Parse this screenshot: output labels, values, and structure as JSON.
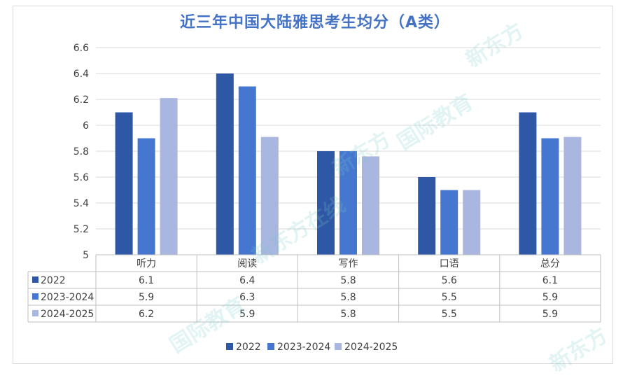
{
  "chart_data": {
    "type": "bar",
    "title": "近三年中国大陆雅思考生均分（A类）",
    "categories": [
      "听力",
      "阅读",
      "写作",
      "口语",
      "总分"
    ],
    "series": [
      {
        "name": "2022",
        "values": [
          6.1,
          6.4,
          5.8,
          5.6,
          6.1
        ],
        "color": "#2e58a6"
      },
      {
        "name": "2023-2024",
        "values": [
          5.9,
          6.3,
          5.8,
          5.5,
          5.9
        ],
        "color": "#4677d0"
      },
      {
        "name": "2024-2025",
        "values": [
          6.2,
          5.9,
          5.8,
          5.5,
          5.9
        ],
        "color": "#a9b6e0"
      }
    ],
    "table_values": [
      [
        "6.1",
        "6.4",
        "5.8",
        "5.6",
        "6.1"
      ],
      [
        "5.9",
        "6.3",
        "5.8",
        "5.5",
        "5.9"
      ],
      [
        "6.2",
        "5.9",
        "5.8",
        "5.5",
        "5.9"
      ]
    ],
    "y_ticks": [
      "5",
      "5.2",
      "5.4",
      "5.6",
      "5.8",
      "6",
      "6.2",
      "6.4",
      "6.6"
    ],
    "ylim": [
      5,
      6.6
    ],
    "grid": true,
    "legend_position": "bottom",
    "plot_values": [
      [
        6.1,
        6.4,
        5.8,
        5.6,
        6.1
      ],
      [
        5.9,
        6.3,
        5.8,
        5.5,
        5.9
      ],
      [
        6.21,
        5.91,
        5.76,
        5.5,
        5.91
      ]
    ]
  },
  "watermark": {
    "text_a": "新东方",
    "text_b": "国际教育",
    "text_c": "新东方在线"
  }
}
